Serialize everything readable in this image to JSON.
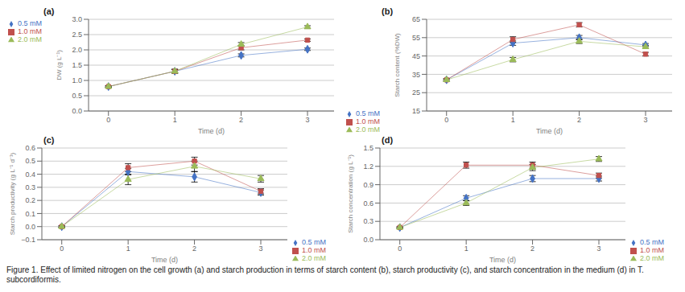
{
  "caption": "Figure 1. Effect of limited nitrogen on the cell growth (a) and starch production in terms of starch content (b), starch productivity (c), and starch concentration in the medium (d) in T. subcordiformis.",
  "chart_data": [
    {
      "type": "line",
      "title": "(a)",
      "x_label": "Time (d)",
      "y_label": "DW (g L⁻¹)",
      "x": [
        0,
        1,
        2,
        3
      ],
      "xlim": [
        -0.3,
        3.4
      ],
      "xticks": [
        0,
        1,
        2,
        3
      ],
      "ylim": [
        0,
        3
      ],
      "yticks": [
        {
          "value": 0,
          "label": "0.0"
        },
        {
          "value": 0.5,
          "label": "0.5"
        },
        {
          "value": 1,
          "label": "1.0"
        },
        {
          "value": 1.5,
          "label": "1.5"
        },
        {
          "value": 2,
          "label": "2.0"
        },
        {
          "value": 2.5,
          "label": "2.5"
        },
        {
          "value": 3,
          "label": "3.0"
        }
      ],
      "grid": true,
      "legend": "upper left",
      "series": [
        {
          "name": "0.5 mM",
          "color": "#4472c4",
          "marker": "diamond",
          "values": [
            0.8,
            1.3,
            1.82,
            2.02
          ],
          "yerr": [
            0.02,
            0.06,
            0.05,
            0.04
          ]
        },
        {
          "name": "1.0 mM",
          "color": "#c0504d",
          "marker": "square",
          "values": [
            0.8,
            1.3,
            2.07,
            2.32
          ],
          "yerr": [
            0.02,
            0.07,
            0.07,
            0.04
          ]
        },
        {
          "name": "2.0 mM",
          "color": "#9bbb59",
          "marker": "triangle",
          "values": [
            0.8,
            1.3,
            2.18,
            2.75
          ],
          "yerr": [
            0.02,
            0.05,
            0.06,
            0.04
          ]
        }
      ]
    },
    {
      "type": "line",
      "title": "(b)",
      "x_label": "Time (d)",
      "y_label": "Starch content (%DW)",
      "x": [
        0,
        1,
        2,
        3
      ],
      "xlim": [
        -0.3,
        3.4
      ],
      "xticks": [
        0,
        1,
        2,
        3
      ],
      "ylim": [
        15,
        65
      ],
      "yticks": [
        15,
        25,
        35,
        45,
        55,
        65
      ],
      "grid": true,
      "legend": "lower left",
      "series": [
        {
          "name": "0.5 mM",
          "color": "#4472c4",
          "marker": "diamond",
          "values": [
            32,
            52,
            55,
            51
          ],
          "yerr": [
            0.5,
            1.2,
            1.2,
            0.8
          ]
        },
        {
          "name": "1.0 mM",
          "color": "#c0504d",
          "marker": "square",
          "values": [
            32,
            54,
            62,
            46
          ],
          "yerr": [
            0.5,
            1.5,
            1.2,
            1.0
          ]
        },
        {
          "name": "2.0 mM",
          "color": "#9bbb59",
          "marker": "triangle",
          "values": [
            32,
            43,
            53,
            50
          ],
          "yerr": [
            0.5,
            1.2,
            1.2,
            0.8
          ]
        }
      ]
    },
    {
      "type": "line",
      "title": "(c)",
      "x_label": "Time (d)",
      "y_label": "Starch productivity (g L⁻¹ d⁻¹)",
      "x": [
        0,
        1,
        2,
        3
      ],
      "xlim": [
        -0.3,
        3.4
      ],
      "xticks": [
        0,
        1,
        2,
        3
      ],
      "ylim": [
        -0.1,
        0.6
      ],
      "yticks": [
        {
          "value": -0.1,
          "label": "−0.1"
        },
        {
          "value": 0,
          "label": "0.0"
        },
        {
          "value": 0.1,
          "label": "0.1"
        },
        {
          "value": 0.2,
          "label": "0.2"
        },
        {
          "value": 0.3,
          "label": "0.3"
        },
        {
          "value": 0.4,
          "label": "0.4"
        },
        {
          "value": 0.5,
          "label": "0.5"
        },
        {
          "value": 0.6,
          "label": "0.6"
        }
      ],
      "grid": true,
      "legend": "lower right",
      "series": [
        {
          "name": "0.5 mM",
          "color": "#4472c4",
          "marker": "diamond",
          "values": [
            0.0,
            0.42,
            0.38,
            0.26
          ],
          "yerr": [
            0.005,
            0.025,
            0.04,
            0.02
          ]
        },
        {
          "name": "1.0 mM",
          "color": "#c0504d",
          "marker": "square",
          "values": [
            0.0,
            0.45,
            0.5,
            0.27
          ],
          "yerr": [
            0.005,
            0.03,
            0.03,
            0.02
          ]
        },
        {
          "name": "2.0 mM",
          "color": "#9bbb59",
          "marker": "triangle",
          "values": [
            0.0,
            0.36,
            0.46,
            0.365
          ],
          "yerr": [
            0.005,
            0.04,
            0.04,
            0.025
          ]
        }
      ]
    },
    {
      "type": "line",
      "title": "(d)",
      "x_label": "Time (d)",
      "y_label": "Starch concentration (g L⁻¹)",
      "x": [
        0,
        1,
        2,
        3
      ],
      "xlim": [
        -0.3,
        3.4
      ],
      "xticks": [
        0,
        1,
        2,
        3
      ],
      "ylim": [
        0,
        1.5
      ],
      "yticks": [
        {
          "value": 0,
          "label": "0.0"
        },
        {
          "value": 0.3,
          "label": "0.3"
        },
        {
          "value": 0.6,
          "label": "0.6"
        },
        {
          "value": 0.9,
          "label": "0.9"
        },
        {
          "value": 1.2,
          "label": "1.2"
        },
        {
          "value": 1.5,
          "label": "1.5"
        }
      ],
      "grid": true,
      "legend": "lower right",
      "series": [
        {
          "name": "0.5 mM",
          "color": "#4472c4",
          "marker": "diamond",
          "values": [
            0.2,
            0.68,
            1.0,
            1.0
          ],
          "yerr": [
            0.01,
            0.04,
            0.05,
            0.04
          ]
        },
        {
          "name": "1.0 mM",
          "color": "#c0504d",
          "marker": "square",
          "values": [
            0.2,
            1.22,
            1.22,
            1.05
          ],
          "yerr": [
            0.01,
            0.05,
            0.05,
            0.04
          ]
        },
        {
          "name": "2.0 mM",
          "color": "#9bbb59",
          "marker": "triangle",
          "values": [
            0.2,
            0.6,
            1.18,
            1.32
          ],
          "yerr": [
            0.01,
            0.04,
            0.05,
            0.04
          ]
        }
      ]
    }
  ]
}
